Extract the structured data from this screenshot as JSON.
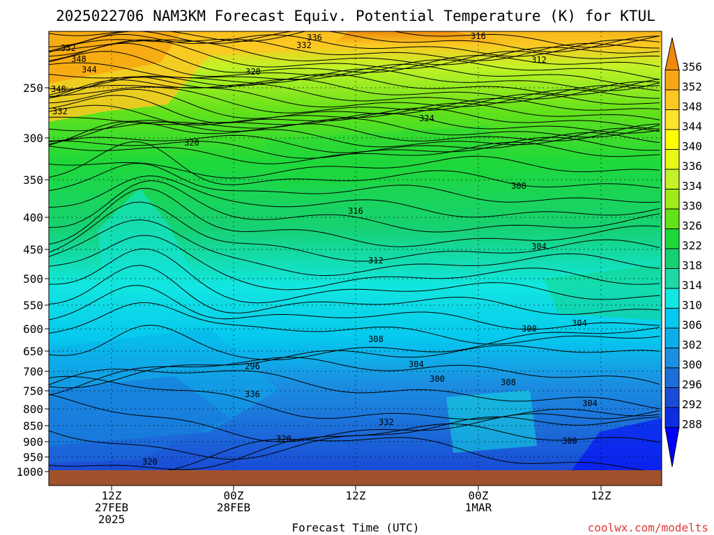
{
  "chart_data": {
    "type": "heatmap",
    "title": "2025022706 NAM3KM Forecast Equiv. Potential Temperature (K) for KTUL",
    "xlabel": "Forecast Time (UTC)",
    "ylabel": "",
    "credit": "coolwx.com/modelts",
    "x_ticks": [
      {
        "lines": [
          "12Z",
          "27FEB",
          "2025"
        ]
      },
      {
        "lines": [
          "00Z",
          "28FEB"
        ]
      },
      {
        "lines": [
          "12Z"
        ]
      },
      {
        "lines": [
          "00Z",
          "1MAR"
        ]
      },
      {
        "lines": [
          "12Z"
        ]
      }
    ],
    "y_ticks": [
      250,
      300,
      350,
      400,
      450,
      500,
      550,
      600,
      650,
      700,
      750,
      800,
      850,
      900,
      950,
      1000
    ],
    "ylim": [
      1000,
      200
    ],
    "colorbar": {
      "labels": [
        356,
        352,
        348,
        344,
        340,
        336,
        334,
        330,
        326,
        322,
        318,
        314,
        310,
        306,
        302,
        300,
        296,
        292,
        288
      ],
      "colors": [
        "#ee8a0c",
        "#f6a812",
        "#fbc822",
        "#ffe32b",
        "#ffff00",
        "#e4fa14",
        "#c2f227",
        "#9fea19",
        "#64e21a",
        "#1ed83b",
        "#16d173",
        "#1ed7a6",
        "#12e6e0",
        "#05c8ef",
        "#0caee9",
        "#1b8fe1",
        "#1c6fd9",
        "#1a4bd6",
        "#0d2ee0",
        "#0000ff"
      ]
    },
    "contour_labels": [
      "352",
      "348",
      "344",
      "340",
      "336",
      "332",
      "328",
      "324",
      "320",
      "316",
      "312",
      "308",
      "304",
      "300",
      "296",
      "336",
      "332",
      "320",
      "320",
      "316",
      "312",
      "308",
      "304",
      "300",
      "304",
      "308",
      "304",
      "300",
      "332"
    ],
    "grid": true,
    "ground_color": "#a0522d"
  }
}
